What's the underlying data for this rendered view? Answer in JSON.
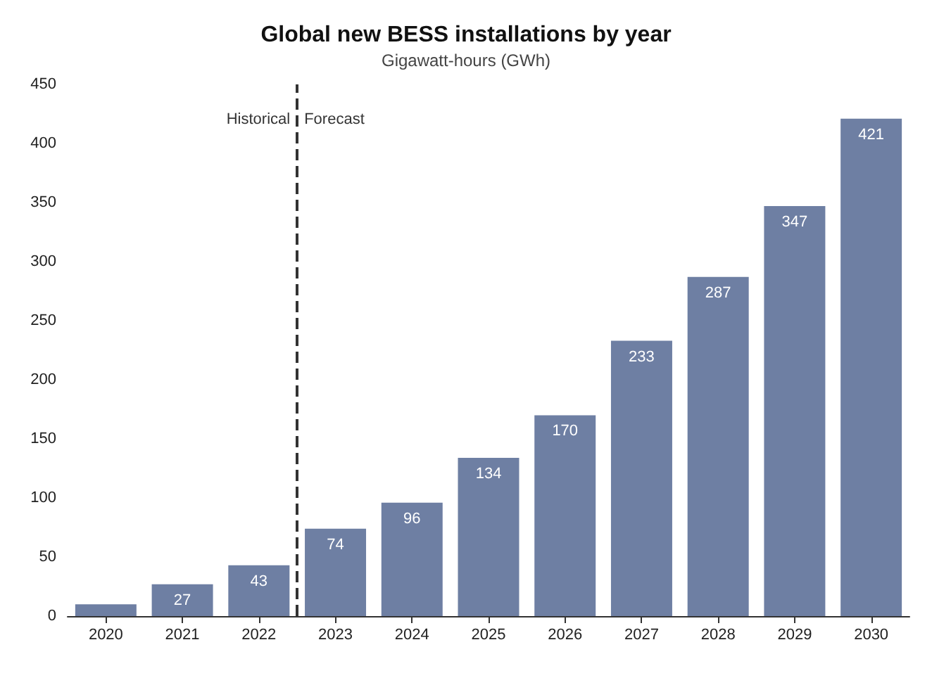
{
  "chart_data": {
    "type": "bar",
    "title": "Global new BESS installations by year",
    "subtitle": "Gigawatt-hours (GWh)",
    "x": [
      2020,
      2021,
      2022,
      2023,
      2024,
      2025,
      2026,
      2027,
      2028,
      2029,
      2030
    ],
    "values": [
      10,
      27,
      43,
      74,
      96,
      134,
      170,
      233,
      287,
      347,
      421
    ],
    "value_labels": [
      null,
      "27",
      "43",
      "74",
      "96",
      "134",
      "170",
      "233",
      "287",
      "347",
      "421"
    ],
    "color": "#6e7fa3",
    "xlim": [
      2019.5,
      2030.5
    ],
    "xticks": [
      2020,
      2021,
      2022,
      2023,
      2024,
      2025,
      2026,
      2027,
      2028,
      2029,
      2030
    ],
    "ylim": [
      0,
      450
    ],
    "yticks": [
      0,
      50,
      100,
      150,
      200,
      250,
      300,
      350,
      400,
      450
    ],
    "grid": false,
    "ref_lines": [
      {
        "axis": "x",
        "value": 2022.5,
        "color": "#333333",
        "line_style": "dashed"
      }
    ],
    "annotations": [
      {
        "text": "Historical",
        "x": 2022.5,
        "y": 420
      },
      {
        "text": "Forecast",
        "x": 2022.5,
        "y": 420
      }
    ]
  }
}
